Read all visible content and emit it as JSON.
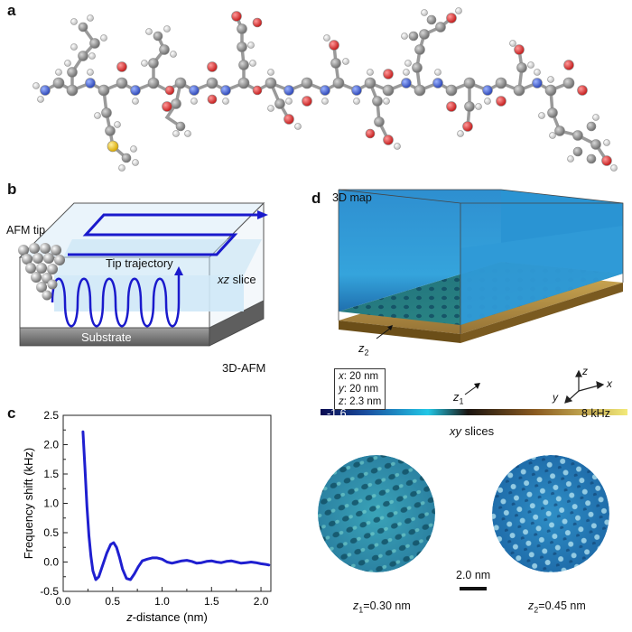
{
  "panels": {
    "a": "a",
    "b": "b",
    "c": "c",
    "d": "d"
  },
  "panel_b": {
    "afm_tip": "AFM tip",
    "tip_trajectory": "Tip trajectory",
    "xz": "xz",
    "slice": " slice",
    "substrate": "Substrate",
    "mode": "3D-AFM"
  },
  "panel_d": {
    "title": "3D map",
    "z1_label": "z",
    "z1_sub": "1",
    "z2_label": "z",
    "z2_sub": "2",
    "info": [
      {
        "var": "x",
        "val": ": 20 nm"
      },
      {
        "var": "y",
        "val": ": 20 nm"
      },
      {
        "var": "z",
        "val": ": 2.3 nm"
      }
    ],
    "axes": {
      "x": "x",
      "y": "y",
      "z": "z"
    },
    "colorbar_min": "-1.6",
    "colorbar_max": "8 kHz",
    "xy": "xy",
    "slices": " slices",
    "scale_bar": "2.0 nm",
    "slice1": {
      "var": "z",
      "sub": "1",
      "val": "=0.30 nm"
    },
    "slice2": {
      "var": "z",
      "sub": "2",
      "val": "=0.45 nm"
    }
  },
  "chart_data": {
    "type": "line",
    "xlabel": "z-distance (nm)",
    "ylabel": "Frequency shift (kHz)",
    "xlim": [
      0.0,
      2.1
    ],
    "ylim": [
      -0.5,
      2.5
    ],
    "xticks": [
      "0.0",
      "0.5",
      "1.0",
      "1.5",
      "2.0"
    ],
    "yticks": [
      "-0.5",
      "0.0",
      "0.5",
      "1.0",
      "1.5",
      "2.0",
      "2.5"
    ],
    "series": [
      {
        "color": "#1f1fd0",
        "x": [
          0.2,
          0.22,
          0.24,
          0.26,
          0.28,
          0.3,
          0.33,
          0.36,
          0.4,
          0.44,
          0.48,
          0.51,
          0.54,
          0.57,
          0.6,
          0.64,
          0.68,
          0.72,
          0.76,
          0.8,
          0.85,
          0.9,
          0.95,
          1.0,
          1.05,
          1.1,
          1.15,
          1.2,
          1.25,
          1.3,
          1.35,
          1.4,
          1.45,
          1.5,
          1.55,
          1.6,
          1.65,
          1.7,
          1.75,
          1.8,
          1.85,
          1.9,
          1.95,
          2.0,
          2.05,
          2.08
        ],
        "y": [
          2.22,
          1.6,
          0.95,
          0.45,
          0.1,
          -0.15,
          -0.3,
          -0.25,
          -0.05,
          0.15,
          0.3,
          0.33,
          0.25,
          0.08,
          -0.12,
          -0.28,
          -0.3,
          -0.2,
          -0.08,
          0.02,
          0.05,
          0.07,
          0.07,
          0.05,
          0.0,
          -0.02,
          0.0,
          0.02,
          0.03,
          0.01,
          -0.02,
          -0.01,
          0.01,
          0.02,
          0.0,
          -0.01,
          0.01,
          0.02,
          0.0,
          -0.02,
          -0.01,
          0.0,
          -0.01,
          -0.03,
          -0.04,
          -0.05
        ]
      }
    ],
    "grid": false
  }
}
